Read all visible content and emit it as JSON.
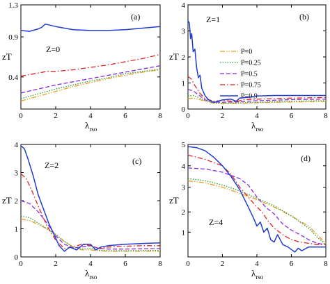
{
  "colors": {
    "P=0": "#e6a020",
    "P=0.25": "#2e9b2e",
    "P=0.5": "#8a2be2",
    "P=0.75": "#e02020",
    "P=0.9": "#1f3ccf",
    "axis": "#000000"
  },
  "legend": {
    "placement": "panel-b-right",
    "entries": [
      {
        "label": "P=0",
        "style": "dash-dot-dot"
      },
      {
        "label": "P=0.25",
        "style": "dotted"
      },
      {
        "label": "P=0.5",
        "style": "dashed"
      },
      {
        "label": "P=0.75",
        "style": "dash-dot"
      },
      {
        "label": "P=0.9",
        "style": "solid"
      }
    ]
  },
  "chart_data": [
    {
      "type": "line",
      "panel": "(a)",
      "annotation": "Z=0",
      "xlabel": "λ",
      "xlabel_sub": "rso",
      "ylabel": "zT",
      "xlim": [
        0,
        8
      ],
      "ylim": [
        0,
        1.3
      ],
      "xticks": [
        "0",
        "2",
        "4",
        "6",
        "8"
      ],
      "yticks": [
        {
          "value": 0.4,
          "label": "0.4"
        },
        {
          "value": 0.9,
          "label": "0.9"
        },
        {
          "value": 1.3,
          "label": "1.3"
        }
      ],
      "series": [
        {
          "name": "P=0",
          "x": [
            0,
            1,
            2,
            3,
            4,
            5,
            6,
            7,
            8
          ],
          "y": [
            0.1,
            0.16,
            0.22,
            0.28,
            0.33,
            0.38,
            0.42,
            0.46,
            0.49
          ]
        },
        {
          "name": "P=0.25",
          "x": [
            0,
            1,
            2,
            3,
            4,
            5,
            6,
            7,
            8
          ],
          "y": [
            0.13,
            0.19,
            0.25,
            0.3,
            0.35,
            0.39,
            0.44,
            0.47,
            0.5
          ]
        },
        {
          "name": "P=0.5",
          "x": [
            0,
            1,
            2,
            3,
            4,
            5,
            6,
            7,
            8
          ],
          "y": [
            0.2,
            0.25,
            0.3,
            0.34,
            0.38,
            0.42,
            0.46,
            0.5,
            0.54
          ]
        },
        {
          "name": "P=0.75",
          "x": [
            0,
            1,
            1.5,
            2,
            3,
            4,
            5,
            6,
            7,
            8
          ],
          "y": [
            0.41,
            0.45,
            0.47,
            0.47,
            0.49,
            0.52,
            0.55,
            0.59,
            0.63,
            0.68
          ]
        },
        {
          "name": "P=0.9",
          "x": [
            0,
            0.5,
            1,
            1.2,
            1.4,
            1.6,
            2,
            3,
            4,
            4.5,
            5,
            6,
            7,
            8
          ],
          "y": [
            0.98,
            0.97,
            1.0,
            1.02,
            1.06,
            1.05,
            1.03,
            0.99,
            0.98,
            0.98,
            0.98,
            0.99,
            1.01,
            1.03
          ]
        }
      ]
    },
    {
      "type": "line",
      "panel": "(b)",
      "annotation": "Z=1",
      "xlabel": "λ",
      "xlabel_sub": "rso",
      "ylabel": "zT",
      "xlim": [
        0,
        8
      ],
      "ylim": [
        0,
        4
      ],
      "xticks": [
        "0",
        "2",
        "4",
        "6",
        "8"
      ],
      "yticks": [
        {
          "value": 0,
          "label": "0"
        },
        {
          "value": 1,
          "label": "1"
        },
        {
          "value": 2,
          "label": "2"
        },
        {
          "value": 3,
          "label": "3"
        },
        {
          "value": 4,
          "label": "4"
        }
      ],
      "series": [
        {
          "name": "P=0",
          "x": [
            0,
            0.3,
            0.6,
            1.0,
            1.5,
            2,
            3,
            4,
            5,
            6,
            7,
            8
          ],
          "y": [
            0.4,
            0.42,
            0.38,
            0.3,
            0.22,
            0.2,
            0.22,
            0.24,
            0.26,
            0.27,
            0.28,
            0.29
          ]
        },
        {
          "name": "P=0.25",
          "x": [
            0,
            0.3,
            0.6,
            1.0,
            1.5,
            2,
            3,
            4,
            5,
            6,
            7,
            8
          ],
          "y": [
            0.5,
            0.52,
            0.45,
            0.32,
            0.24,
            0.22,
            0.24,
            0.26,
            0.28,
            0.3,
            0.31,
            0.32
          ]
        },
        {
          "name": "P=0.5",
          "x": [
            0,
            0.3,
            0.6,
            1.0,
            1.5,
            2,
            3,
            4,
            5,
            6,
            7,
            8
          ],
          "y": [
            0.75,
            0.7,
            0.55,
            0.35,
            0.27,
            0.26,
            0.28,
            0.32,
            0.34,
            0.36,
            0.37,
            0.38
          ]
        },
        {
          "name": "P=0.75",
          "x": [
            0,
            0.2,
            0.4,
            0.7,
            1.0,
            1.5,
            2,
            2.8,
            3.2,
            4,
            5,
            6,
            7,
            8
          ],
          "y": [
            1.25,
            1.15,
            0.9,
            0.6,
            0.4,
            0.3,
            0.33,
            0.28,
            0.36,
            0.38,
            0.4,
            0.42,
            0.43,
            0.44
          ]
        },
        {
          "name": "P=0.9",
          "x": [
            0,
            0.08,
            0.15,
            0.22,
            0.3,
            0.4,
            0.5,
            0.6,
            0.7,
            0.8,
            1.0,
            1.2,
            1.5,
            2,
            2.5,
            2.8,
            3.0,
            3.5,
            4,
            5,
            6,
            7,
            8
          ],
          "y": [
            3.4,
            3.3,
            2.7,
            2.9,
            2.2,
            2.3,
            1.6,
            1.2,
            1.3,
            0.8,
            0.5,
            0.35,
            0.25,
            0.35,
            0.38,
            0.3,
            0.42,
            0.45,
            0.5,
            0.52,
            0.52,
            0.52,
            0.52
          ]
        }
      ]
    },
    {
      "type": "line",
      "panel": "(c)",
      "annotation": "Z=2",
      "xlabel": "λ",
      "xlabel_sub": "rso",
      "ylabel": "zT",
      "xlim": [
        0,
        8
      ],
      "ylim": [
        0,
        4
      ],
      "xticks": [
        "0",
        "2",
        "4",
        "6",
        "8"
      ],
      "yticks": [
        {
          "value": 0,
          "label": "0"
        },
        {
          "value": 1,
          "label": "1"
        },
        {
          "value": 2,
          "label": "2"
        },
        {
          "value": 3,
          "label": "3"
        },
        {
          "value": 4,
          "label": "4"
        }
      ],
      "series": [
        {
          "name": "P=0",
          "x": [
            0,
            0.5,
            1,
            1.5,
            2,
            2.5,
            3,
            3.5,
            4,
            4.5,
            5,
            6,
            7,
            8
          ],
          "y": [
            1.35,
            1.3,
            1.15,
            1.0,
            0.8,
            0.55,
            0.35,
            0.25,
            0.25,
            0.22,
            0.2,
            0.2,
            0.2,
            0.2
          ]
        },
        {
          "name": "P=0.25",
          "x": [
            0,
            0.5,
            1,
            1.5,
            2,
            2.5,
            3,
            3.5,
            4,
            4.5,
            5,
            6,
            7,
            8
          ],
          "y": [
            1.45,
            1.4,
            1.2,
            1.0,
            0.8,
            0.55,
            0.35,
            0.28,
            0.3,
            0.24,
            0.22,
            0.22,
            0.23,
            0.23
          ]
        },
        {
          "name": "P=0.5",
          "x": [
            0,
            0.5,
            1,
            1.5,
            2,
            2.5,
            3,
            3.5,
            4,
            4.5,
            5,
            6,
            7,
            8
          ],
          "y": [
            2.0,
            1.9,
            1.6,
            1.2,
            0.75,
            0.45,
            0.32,
            0.35,
            0.4,
            0.3,
            0.28,
            0.28,
            0.29,
            0.3
          ]
        },
        {
          "name": "P=0.75",
          "x": [
            0,
            0.3,
            0.6,
            1,
            1.5,
            2,
            2.5,
            3,
            3.5,
            4,
            4.5,
            5,
            6,
            7,
            8
          ],
          "y": [
            2.95,
            2.8,
            2.4,
            1.8,
            1.1,
            0.6,
            0.3,
            0.35,
            0.45,
            0.4,
            0.3,
            0.35,
            0.38,
            0.4,
            0.4
          ]
        },
        {
          "name": "P=0.9",
          "x": [
            0,
            0.2,
            0.4,
            0.7,
            1,
            1.3,
            1.6,
            1.9,
            2.2,
            2.5,
            2.8,
            3.2,
            3.6,
            4,
            4.3,
            4.6,
            5,
            6,
            7,
            8
          ],
          "y": [
            3.95,
            3.85,
            3.5,
            2.9,
            2.2,
            1.7,
            1.2,
            0.8,
            0.4,
            0.2,
            0.35,
            0.25,
            0.45,
            0.45,
            0.25,
            0.35,
            0.4,
            0.45,
            0.48,
            0.5
          ]
        }
      ]
    },
    {
      "type": "line",
      "panel": "(d)",
      "annotation": "Z=4",
      "xlabel": "λ",
      "xlabel_sub": "rso",
      "ylabel": "zT",
      "xlim": [
        0,
        8
      ],
      "ylim": [
        0,
        5
      ],
      "yscale": "nonlinear",
      "xticks": [
        "0",
        "2",
        "4",
        "6",
        "8"
      ],
      "yticks": [
        {
          "value": 1,
          "label": "1"
        },
        {
          "value": 2,
          "label": "2"
        },
        {
          "value": 3,
          "label": "3"
        },
        {
          "value": 4,
          "label": "4"
        },
        {
          "value": 5,
          "label": "5"
        }
      ],
      "series": [
        {
          "name": "P=0",
          "x": [
            0,
            1,
            2,
            3,
            4,
            5,
            6,
            7,
            7.5,
            8
          ],
          "y": [
            3.3,
            3.2,
            3.0,
            2.75,
            2.5,
            2.2,
            1.8,
            1.3,
            0.9,
            0.55
          ]
        },
        {
          "name": "P=0.25",
          "x": [
            0,
            1,
            2,
            3,
            4,
            5,
            6,
            7,
            7.5,
            8
          ],
          "y": [
            3.4,
            3.3,
            3.1,
            2.85,
            2.55,
            2.25,
            1.8,
            1.2,
            0.8,
            0.5
          ]
        },
        {
          "name": "P=0.5",
          "x": [
            0,
            1,
            2,
            3,
            3.5,
            4,
            4.5,
            5,
            5.5,
            6,
            6.5,
            7,
            7.5,
            8
          ],
          "y": [
            3.9,
            3.85,
            3.7,
            3.4,
            3.1,
            2.6,
            2.2,
            1.9,
            1.4,
            1.1,
            0.9,
            0.7,
            0.55,
            0.5
          ]
        },
        {
          "name": "P=0.75",
          "x": [
            0,
            1,
            2,
            2.5,
            3,
            3.5,
            4,
            4.3,
            4.6,
            5,
            5.5,
            6,
            6.5,
            7,
            7.5,
            8
          ],
          "y": [
            4.5,
            4.3,
            4.0,
            3.6,
            3.0,
            2.6,
            2.2,
            2.0,
            1.6,
            1.2,
            0.9,
            0.7,
            0.6,
            0.55,
            0.5,
            0.5
          ]
        },
        {
          "name": "P=0.9",
          "x": [
            0,
            0.5,
            1,
            1.5,
            2,
            2.5,
            3,
            3.5,
            3.8,
            4,
            4.2,
            4.4,
            4.6,
            4.8,
            5.0,
            5.2,
            5.5,
            5.8,
            6,
            6.2,
            6.4,
            6.6,
            7,
            7.5,
            8
          ],
          "y": [
            4.9,
            4.85,
            4.7,
            4.4,
            4.0,
            3.5,
            2.9,
            2.2,
            1.7,
            1.3,
            1.5,
            1.0,
            1.2,
            0.7,
            0.6,
            0.9,
            0.5,
            0.4,
            0.3,
            0.2,
            0.35,
            0.25,
            0.4,
            0.4,
            0.4
          ]
        }
      ]
    }
  ]
}
